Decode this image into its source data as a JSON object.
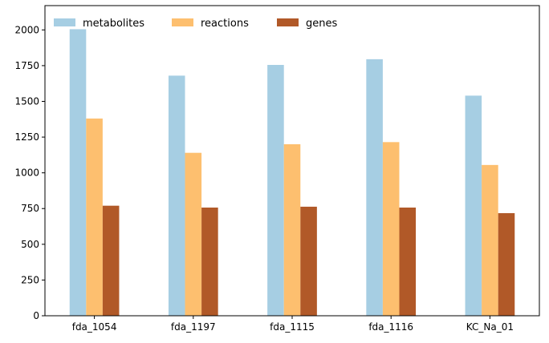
{
  "chart_data": {
    "type": "bar",
    "categories": [
      "fda_1054",
      "fda_1197",
      "fda_1115",
      "fda_1116",
      "KC_Na_01"
    ],
    "series": [
      {
        "name": "metabolites",
        "color": "#a6cee3",
        "values": [
          2005,
          1680,
          1755,
          1795,
          1540
        ]
      },
      {
        "name": "reactions",
        "color": "#fdbf6f",
        "values": [
          1380,
          1140,
          1200,
          1215,
          1055
        ]
      },
      {
        "name": "genes",
        "color": "#b15928",
        "values": [
          770,
          757,
          763,
          757,
          718
        ]
      }
    ],
    "yticks": [
      0,
      250,
      500,
      750,
      1000,
      1250,
      1500,
      1750,
      2000
    ],
    "ylim": [
      0,
      2170
    ],
    "legend": "top-left",
    "grid": false
  }
}
